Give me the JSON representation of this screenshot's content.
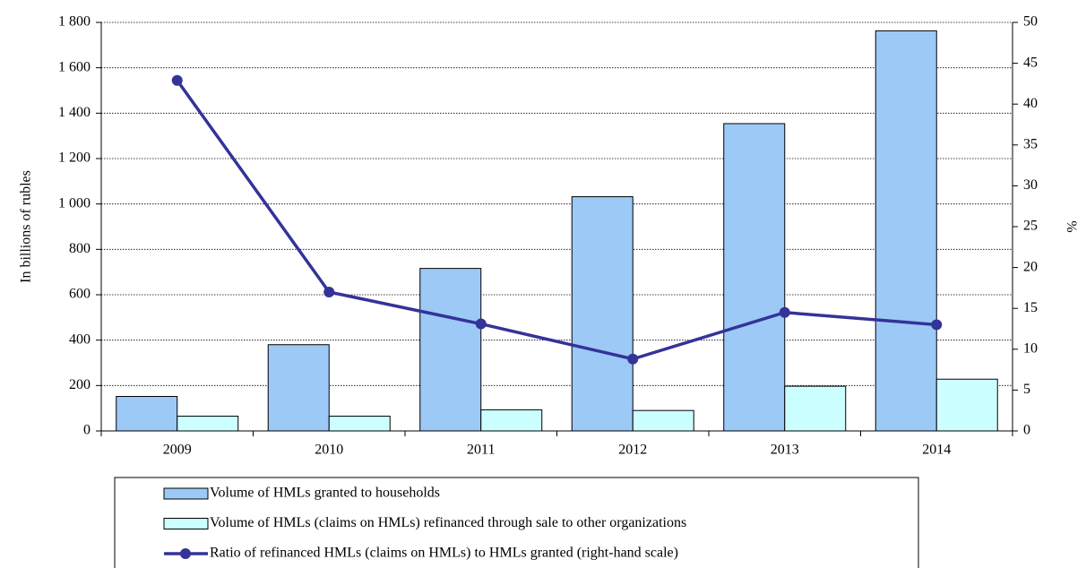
{
  "chart_data": {
    "type": "bar",
    "categories": [
      "2009",
      "2010",
      "2011",
      "2012",
      "2013",
      "2014"
    ],
    "ylabel": "In billions of rubles",
    "y2label": "%",
    "ylim": [
      0,
      1800
    ],
    "yticks": [
      0,
      200,
      400,
      600,
      800,
      {
        "value": 1000,
        "label": "1 000"
      },
      {
        "value": 1200,
        "label": "1 200"
      },
      {
        "value": 1400,
        "label": "1 400"
      },
      {
        "value": 1600,
        "label": "1 600"
      },
      {
        "value": 1800,
        "label": "1 800"
      }
    ],
    "y2lim": [
      0,
      50
    ],
    "y2ticks": [
      0,
      5,
      10,
      15,
      20,
      25,
      30,
      35,
      40,
      45,
      50
    ],
    "grid": true,
    "legend": "bottom",
    "series": [
      {
        "name": "Volume of HMLs granted to households",
        "type": "bar",
        "color": "#9cc9f5",
        "values": [
          152,
          380,
          716,
          1032,
          1354,
          1763
        ]
      },
      {
        "name": "Volume of HMLs (claims on HMLs) refinanced through sale to other organizations",
        "type": "bar",
        "color": "#ccffff",
        "values": [
          65,
          65,
          93,
          90,
          197,
          228
        ]
      },
      {
        "name": "Ratio of refinanced HMLs (claims on HMLs) to HMLs granted (right-hand scale)",
        "type": "line",
        "color": "#333399",
        "axis": "y2",
        "values": [
          42.9,
          17.0,
          13.1,
          8.8,
          14.5,
          13.0
        ]
      }
    ]
  }
}
